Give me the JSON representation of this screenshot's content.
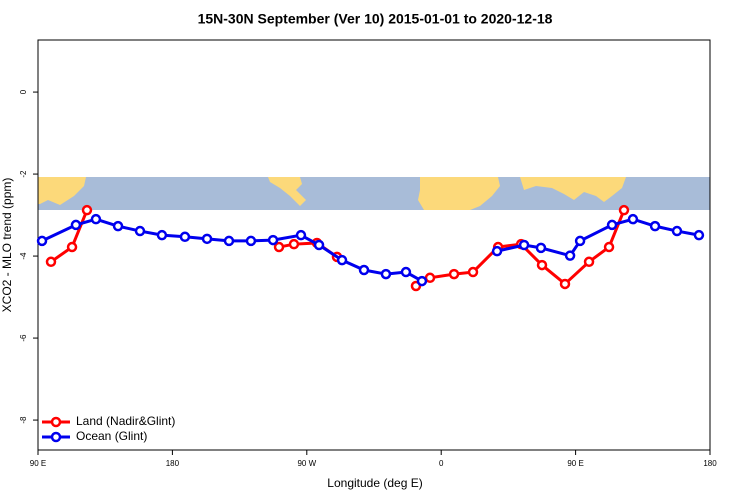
{
  "chart_data": {
    "type": "line",
    "title": "15N-30N September (Ver 10)   2015-01-01 to 2020-12-18",
    "xlabel": "Longitude (deg E)",
    "ylabel": "XCO2 - MLO trend (ppm)",
    "xlim": [
      90,
      540
    ],
    "xticks": [
      {
        "value": 90,
        "label": "90 E"
      },
      180,
      {
        "value": 270,
        "label": "90 W"
      },
      {
        "value": 360,
        "label": "0"
      },
      {
        "value": 450,
        "label": "90 E"
      },
      {
        "value": 540,
        "label": "180"
      }
    ],
    "ylim": [
      -8.73,
      1.27
    ],
    "yticks": [
      0,
      -2,
      -4,
      -6,
      -8
    ],
    "legend": "bottom-left",
    "series": [
      {
        "name": "Land (Nadir&Glint)",
        "color": "#ff0000",
        "x": [
          98.7,
          112.8,
          122.8,
          null,
          251.4,
          261.4,
          276.8,
          290.2,
          null,
          343.1,
          352.5,
          368.6,
          381.3,
          398.1,
          413.5,
          427.5,
          442.9,
          459,
          472.4,
          482.4
        ],
        "values": [
          -4.14,
          -3.78,
          -2.88,
          null,
          -3.78,
          -3.71,
          -3.68,
          -4.02,
          null,
          -4.73,
          -4.53,
          -4.44,
          -4.39,
          -3.78,
          -3.71,
          -4.22,
          -4.68,
          -4.14,
          -3.78,
          -2.88
        ]
      },
      {
        "name": "Ocean (Glint)",
        "color": "#0000ee",
        "x": [
          92.7,
          115.4,
          128.8,
          143.6,
          158.3,
          173,
          188.4,
          203.2,
          217.9,
          232.6,
          247.4,
          266.1,
          278.2,
          293.6,
          308.3,
          323,
          336.4,
          347.1,
          null,
          397.4,
          415.5,
          426.8,
          446.3,
          453,
          474.4,
          488.4,
          503.2,
          517.9,
          532.6
        ],
        "values": [
          -3.63,
          -3.24,
          -3.1,
          -3.27,
          -3.39,
          -3.49,
          -3.53,
          -3.58,
          -3.63,
          -3.63,
          -3.61,
          -3.49,
          -3.73,
          -4.1,
          -4.34,
          -4.44,
          -4.39,
          -4.61,
          null,
          -3.88,
          -3.73,
          -3.8,
          -3.99,
          -3.63,
          -3.24,
          -3.1,
          -3.27,
          -3.39,
          -3.49
        ]
      }
    ]
  }
}
